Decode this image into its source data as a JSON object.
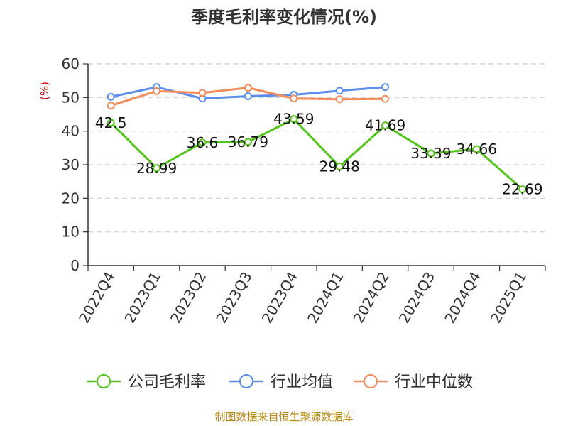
{
  "chart_data": {
    "type": "line",
    "title": "季度毛利率变化情况(%)",
    "ylabel": "(%)",
    "ylim": [
      0,
      60
    ],
    "yticks": [
      0,
      10,
      20,
      30,
      40,
      50,
      60
    ],
    "grid": true,
    "legend_position": "bottom",
    "categories": [
      "2022Q4",
      "2023Q1",
      "2023Q2",
      "2023Q3",
      "2023Q4",
      "2024Q1",
      "2024Q2",
      "2024Q3",
      "2024Q4",
      "2025Q1"
    ],
    "series": [
      {
        "name": "公司毛利率",
        "color": "#52c41a",
        "values": [
          42.5,
          28.99,
          36.6,
          36.79,
          43.59,
          29.48,
          41.69,
          33.39,
          34.66,
          22.69
        ],
        "labels": [
          "42.5",
          "28.99",
          "36.6",
          "36.79",
          "43.59",
          "29.48",
          "41.69",
          "33.39",
          "34.66",
          "22.69"
        ]
      },
      {
        "name": "行业均值",
        "color": "#5b8def",
        "values": [
          50.2,
          53.1,
          49.7,
          50.4,
          50.8,
          52.0,
          53.1,
          null,
          null,
          null
        ]
      },
      {
        "name": "行业中位数",
        "color": "#f28c5a",
        "values": [
          47.6,
          51.9,
          51.4,
          52.9,
          49.7,
          49.5,
          49.6,
          null,
          null,
          null
        ]
      }
    ]
  },
  "footer": {
    "source": "制图数据来自恒生聚源数据库"
  }
}
